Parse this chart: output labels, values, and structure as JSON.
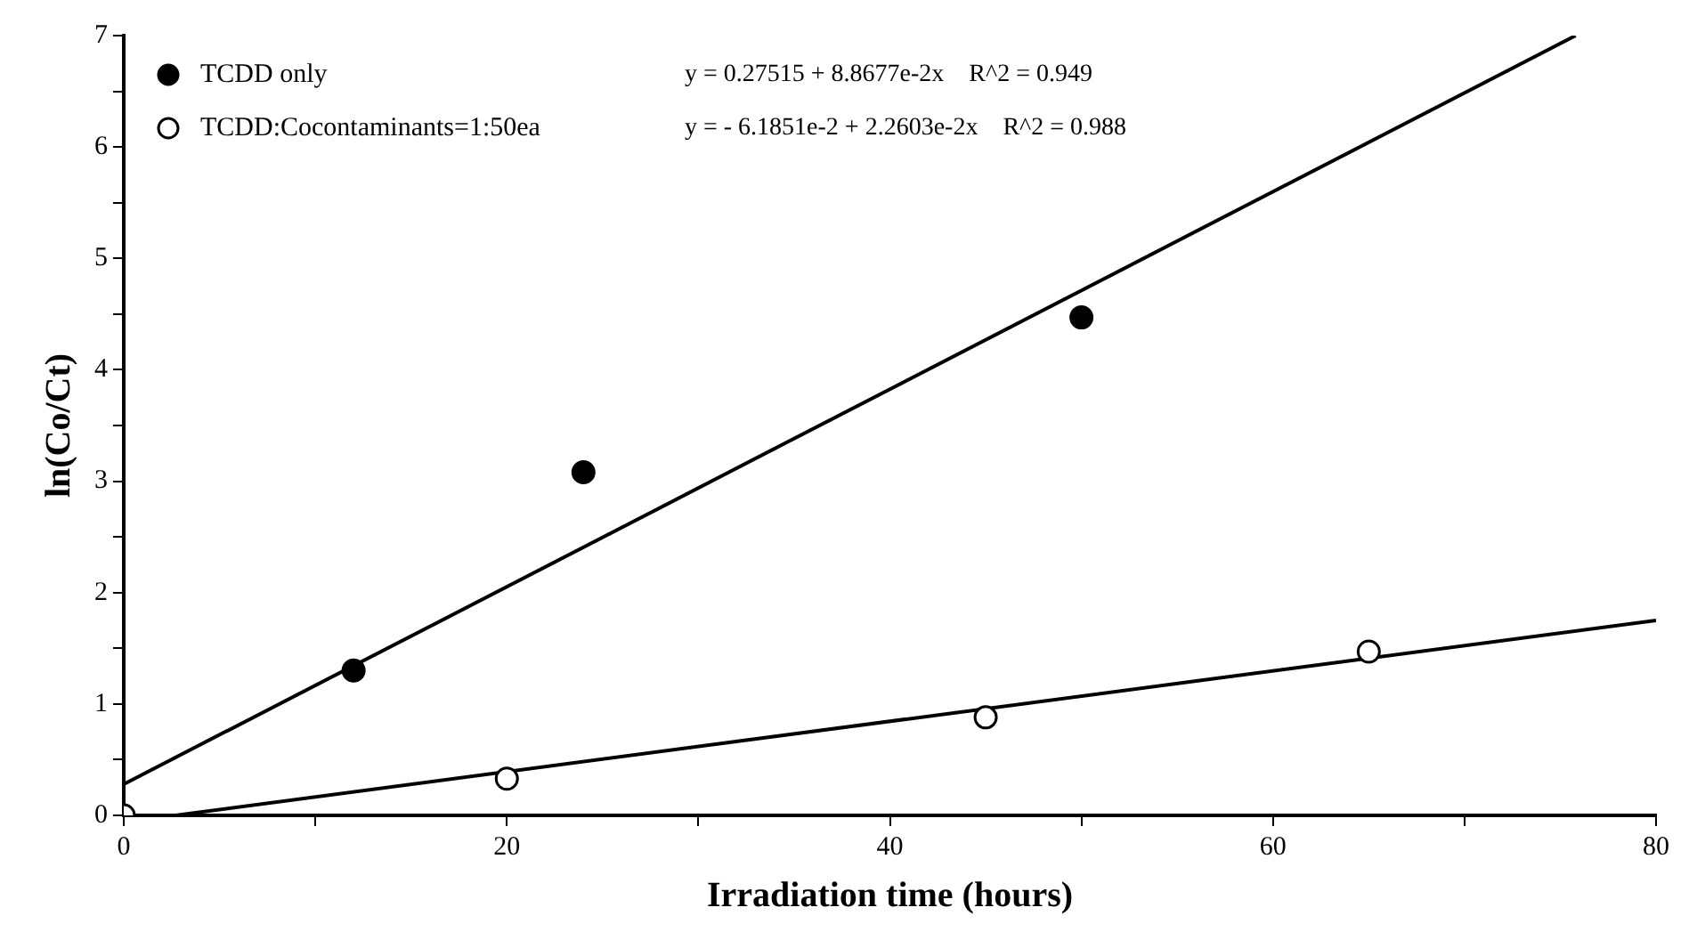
{
  "chart_data": {
    "type": "scatter",
    "xlabel": "Irradiation time (hours)",
    "ylabel": "ln(Co/Ct)",
    "xlim": [
      0,
      80
    ],
    "ylim": [
      0,
      7
    ],
    "xticks": [
      0,
      {
        "value": 10,
        "label": null
      },
      20,
      {
        "value": 30,
        "label": null
      },
      40,
      {
        "value": 50,
        "label": null
      },
      60,
      {
        "value": 70,
        "label": null
      },
      80
    ],
    "yticks": [
      0,
      {
        "value": 0.5,
        "label": null
      },
      1,
      {
        "value": 1.5,
        "label": null
      },
      2,
      {
        "value": 2.5,
        "label": null
      },
      3,
      {
        "value": 3.5,
        "label": null
      },
      4,
      {
        "value": 4.5,
        "label": null
      },
      5,
      {
        "value": 5.5,
        "label": null
      },
      6,
      {
        "value": 6.5,
        "label": null
      },
      7
    ],
    "grid": false,
    "legend": "top left",
    "marker": "circle",
    "series": [
      {
        "name": "TCDD only",
        "color": "#000000",
        "x": [
          12,
          24,
          50
        ],
        "values": [
          1.3,
          3.08,
          4.47
        ]
      },
      {
        "name": "TCDD:Cocontaminants=1:50ea",
        "color": "#ffffff",
        "x": [
          0,
          20,
          45,
          65
        ],
        "values": [
          0,
          0.33,
          0.88,
          1.47
        ]
      },
      {
        "type": "line",
        "color": "#000000",
        "marker": "none",
        "x": [
          0,
          75.8
        ],
        "values": [
          0.28,
          7.0
        ]
      },
      {
        "type": "line",
        "color": "#000000",
        "marker": "none",
        "x": [
          2.7,
          80
        ],
        "values": [
          0,
          1.75
        ]
      }
    ],
    "annotations": [
      "y = 0.27515 + 8.8677e-2x    R^2 = 0.949",
      "y = - 6.1851e-2 + 2.2603e-2x    R^2 = 0.988"
    ]
  }
}
